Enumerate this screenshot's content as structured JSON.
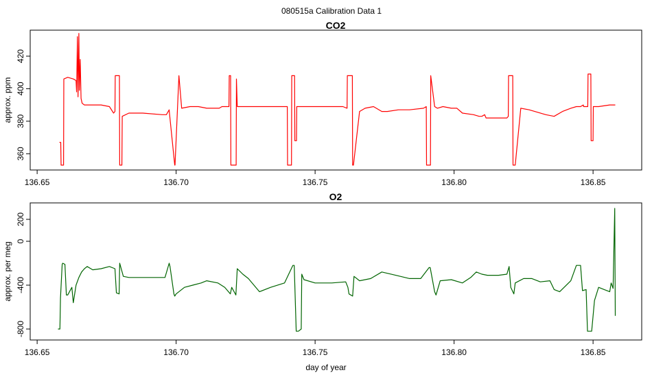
{
  "figure_title": "080515a   Calibration Data 1",
  "chart_data": [
    {
      "type": "line",
      "title": "CO2",
      "xlabel": "",
      "ylabel": "approx. ppm",
      "xlim": [
        136.6475,
        136.8675
      ],
      "ylim": [
        350,
        436
      ],
      "xticks": [
        136.65,
        136.7,
        136.75,
        136.8,
        136.85
      ],
      "xtick_labels": [
        "136.65",
        "136.70",
        "136.75",
        "136.80",
        "136.85"
      ],
      "yticks": [
        360,
        380,
        400,
        420
      ],
      "ytick_labels": [
        "360",
        "380",
        "400",
        "420"
      ],
      "series": [
        {
          "color": "#ff0000",
          "x": [
            136.658,
            136.6585,
            136.6586,
            136.6595,
            136.6596,
            136.661,
            136.663,
            136.664,
            136.6642,
            136.6645,
            136.6647,
            136.665,
            136.6652,
            136.6655,
            136.6658,
            136.6662,
            136.667,
            136.67,
            136.673,
            136.676,
            136.6775,
            136.678,
            136.6781,
            136.6796,
            136.6797,
            136.6805,
            136.6806,
            136.683,
            136.688,
            136.695,
            136.6965,
            136.6975,
            136.6976,
            136.6995,
            136.6996,
            136.701,
            136.702,
            136.705,
            136.708,
            136.711,
            136.713,
            136.7155,
            136.7165,
            136.717,
            136.719,
            136.7191,
            136.7196,
            136.7197,
            136.7216,
            136.7217,
            136.722,
            136.726,
            136.73,
            136.734,
            136.7385,
            136.74,
            136.7401,
            136.7415,
            136.7416,
            136.7426,
            136.7427,
            136.7433,
            136.7434,
            136.7448,
            136.7449,
            136.747,
            136.752,
            136.757,
            136.76,
            136.7615,
            136.7616,
            136.7634,
            136.7635,
            136.7638,
            136.766,
            136.768,
            136.771,
            136.774,
            136.776,
            136.78,
            136.784,
            136.789,
            136.79,
            136.7901,
            136.7915,
            136.7916,
            136.793,
            136.794,
            136.796,
            136.799,
            136.801,
            136.803,
            136.807,
            136.809,
            136.81,
            136.811,
            136.8115,
            136.813,
            136.819,
            136.8195,
            136.8196,
            136.8211,
            136.8212,
            136.822,
            136.824,
            136.827,
            136.829,
            136.833,
            136.836,
            136.839,
            136.842,
            136.844,
            136.8455,
            136.8465,
            136.8466,
            136.8481,
            136.8482,
            136.8492,
            136.8493,
            136.85,
            136.8501,
            136.852,
            136.856,
            136.858
          ],
          "values": [
            367,
            367,
            353,
            353,
            406,
            407,
            406,
            405,
            398,
            432,
            395,
            434,
            399,
            418,
            394,
            391,
            390,
            390,
            390,
            389,
            385,
            386,
            408,
            408,
            353,
            353,
            383,
            385,
            385,
            384,
            384,
            387,
            385,
            353,
            353,
            408,
            388,
            389,
            389,
            388,
            388,
            388,
            389,
            389,
            389,
            408,
            408,
            353,
            353,
            406,
            389,
            389,
            389,
            389,
            389,
            389,
            353,
            353,
            408,
            408,
            368,
            368,
            389,
            389,
            389,
            389,
            389,
            389,
            389,
            388,
            408,
            408,
            353,
            353,
            386,
            388,
            389,
            386,
            386,
            387,
            387,
            388,
            389,
            353,
            353,
            408,
            389,
            388,
            389,
            388,
            388,
            385,
            384,
            383,
            383,
            384,
            382,
            382,
            382,
            383,
            408,
            408,
            353,
            353,
            388,
            387,
            386,
            384,
            383,
            386,
            388,
            389,
            389,
            390,
            389,
            389,
            409,
            409,
            368,
            368,
            389,
            389,
            390,
            390
          ]
        }
      ]
    },
    {
      "type": "line",
      "title": "O2",
      "xlabel": "day of year",
      "ylabel": "approx. per meg",
      "xlim": [
        136.6475,
        136.8675
      ],
      "ylim": [
        -900,
        350
      ],
      "xticks": [
        136.65,
        136.7,
        136.75,
        136.8,
        136.85
      ],
      "xtick_labels": [
        "136.65",
        "136.70",
        "136.75",
        "136.80",
        "136.85"
      ],
      "yticks": [
        -800,
        -400,
        0,
        200
      ],
      "ytick_labels": [
        "-800",
        "-400",
        "0",
        "200"
      ],
      "series": [
        {
          "color": "#006400",
          "x": [
            136.6575,
            136.6582,
            136.6584,
            136.659,
            136.6592,
            136.66,
            136.6605,
            136.661,
            136.6612,
            136.6625,
            136.663,
            136.664,
            136.665,
            136.666,
            136.667,
            136.668,
            136.67,
            136.673,
            136.676,
            136.678,
            136.6785,
            136.6795,
            136.6797,
            136.681,
            136.683,
            136.687,
            136.693,
            136.696,
            136.6975,
            136.6978,
            136.6992,
            136.6995,
            136.7,
            136.703,
            136.706,
            136.709,
            136.711,
            136.715,
            136.7175,
            136.7195,
            136.72,
            136.7215,
            136.722,
            136.724,
            136.726,
            136.73,
            136.734,
            136.739,
            136.742,
            136.7425,
            136.7432,
            136.744,
            136.745,
            136.7452,
            136.746,
            136.75,
            136.756,
            136.761,
            136.7618,
            136.7622,
            136.7635,
            136.764,
            136.766,
            136.77,
            136.774,
            136.779,
            136.784,
            136.788,
            136.791,
            136.7914,
            136.793,
            136.7935,
            136.795,
            136.799,
            136.803,
            136.806,
            136.808,
            136.81,
            136.812,
            136.816,
            136.819,
            136.8198,
            136.8204,
            136.8215,
            136.822,
            136.825,
            136.828,
            136.831,
            136.8345,
            136.836,
            136.838,
            136.842,
            136.844,
            136.8455,
            136.8462,
            136.8475,
            136.848,
            136.8495,
            136.8505,
            136.852,
            136.854,
            136.856,
            136.8565,
            136.8572,
            136.8578,
            136.858
          ],
          "values": [
            -800,
            -800,
            -520,
            -210,
            -200,
            -210,
            -490,
            -490,
            -480,
            -420,
            -560,
            -400,
            -330,
            -280,
            -250,
            -230,
            -260,
            -250,
            -230,
            -250,
            -470,
            -480,
            -200,
            -320,
            -330,
            -330,
            -330,
            -330,
            -200,
            -230,
            -480,
            -500,
            -480,
            -420,
            -400,
            -380,
            -360,
            -380,
            -420,
            -480,
            -420,
            -490,
            -250,
            -300,
            -340,
            -460,
            -420,
            -380,
            -220,
            -220,
            -820,
            -820,
            -800,
            -300,
            -350,
            -380,
            -380,
            -370,
            -420,
            -480,
            -500,
            -320,
            -360,
            -340,
            -280,
            -310,
            -340,
            -340,
            -240,
            -240,
            -460,
            -490,
            -360,
            -350,
            -380,
            -330,
            -280,
            -300,
            -310,
            -310,
            -300,
            -230,
            -420,
            -480,
            -380,
            -340,
            -340,
            -370,
            -360,
            -440,
            -460,
            -360,
            -220,
            -220,
            -450,
            -440,
            -820,
            -820,
            -540,
            -420,
            -440,
            -460,
            -380,
            -430,
            300,
            -680
          ]
        }
      ]
    }
  ]
}
